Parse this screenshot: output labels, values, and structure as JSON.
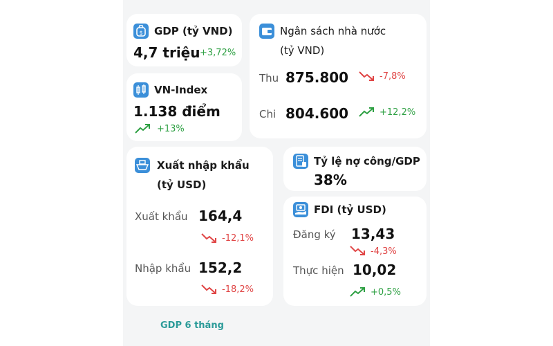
{
  "gdp": {
    "title": "GDP (tỷ VND)",
    "value": "4,7 triệu",
    "change": "+3,72%",
    "icon": "money-bag-icon"
  },
  "vnindex": {
    "title": "VN-Index",
    "value": "1.138 điểm",
    "change": "+13%",
    "icon": "candlestick-icon"
  },
  "budget": {
    "title_line1": "Ngân sách nhà nước",
    "title_line2": "(tỷ VND)",
    "icon": "wallet-icon",
    "income": {
      "label": "Thu",
      "value": "875.800",
      "change": "-7,8%"
    },
    "spend": {
      "label": "Chi",
      "value": "804.600",
      "change": "+12,2%"
    }
  },
  "trade": {
    "title_line1": "Xuất nhập khẩu",
    "title_line2": "(tỷ USD)",
    "icon": "ship-icon",
    "export": {
      "label": "Xuất khẩu",
      "value": "164,4",
      "change": "-12,1%"
    },
    "import": {
      "label": "Nhập khẩu",
      "value": "152,2",
      "change": "-18,2%"
    }
  },
  "debt": {
    "title": "Tỷ lệ nợ công/GDP",
    "value": "38%",
    "icon": "invoice-icon"
  },
  "fdi": {
    "title": "FDI (tỷ USD)",
    "icon": "hand-money-icon",
    "registered": {
      "label": "Đăng ký",
      "value": "13,43",
      "change": "-4,3%"
    },
    "disbursed": {
      "label": "Thực hiện",
      "value": "10,02",
      "change": "+0,5%"
    }
  },
  "footer": {
    "label": "GDP 6 tháng"
  },
  "colors": {
    "positive": "#2ea043",
    "negative": "#e04545",
    "icon_bg": "#3b8fd9",
    "accent": "#2b9b99"
  }
}
